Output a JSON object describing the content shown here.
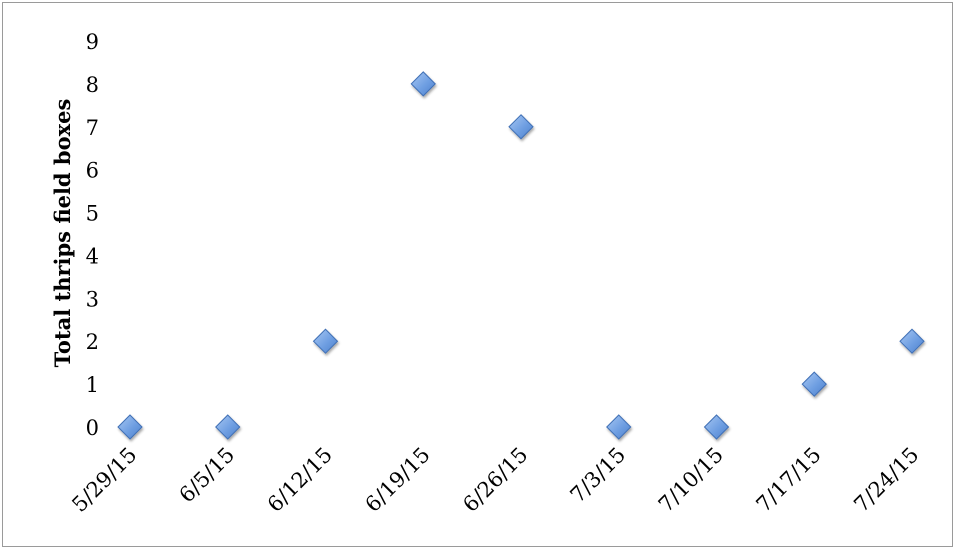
{
  "chart_data": {
    "type": "scatter",
    "title": "",
    "xlabel": "",
    "ylabel": "Total thrips field boxes",
    "categories": [
      "5/29/15",
      "6/5/15",
      "6/12/15",
      "6/19/15",
      "6/26/15",
      "7/3/15",
      "7/10/15",
      "7/17/15",
      "7/24/15"
    ],
    "values": [
      0,
      0,
      2,
      8,
      7,
      0,
      0,
      1,
      2
    ],
    "ylim": [
      0,
      9
    ],
    "yticks": [
      0,
      1,
      2,
      3,
      4,
      5,
      6,
      7,
      8,
      9
    ],
    "grid": false,
    "legend": "none",
    "marker": "diamond",
    "marker_color": "#6a9be0",
    "marker_edge": "#3f6fb5"
  }
}
